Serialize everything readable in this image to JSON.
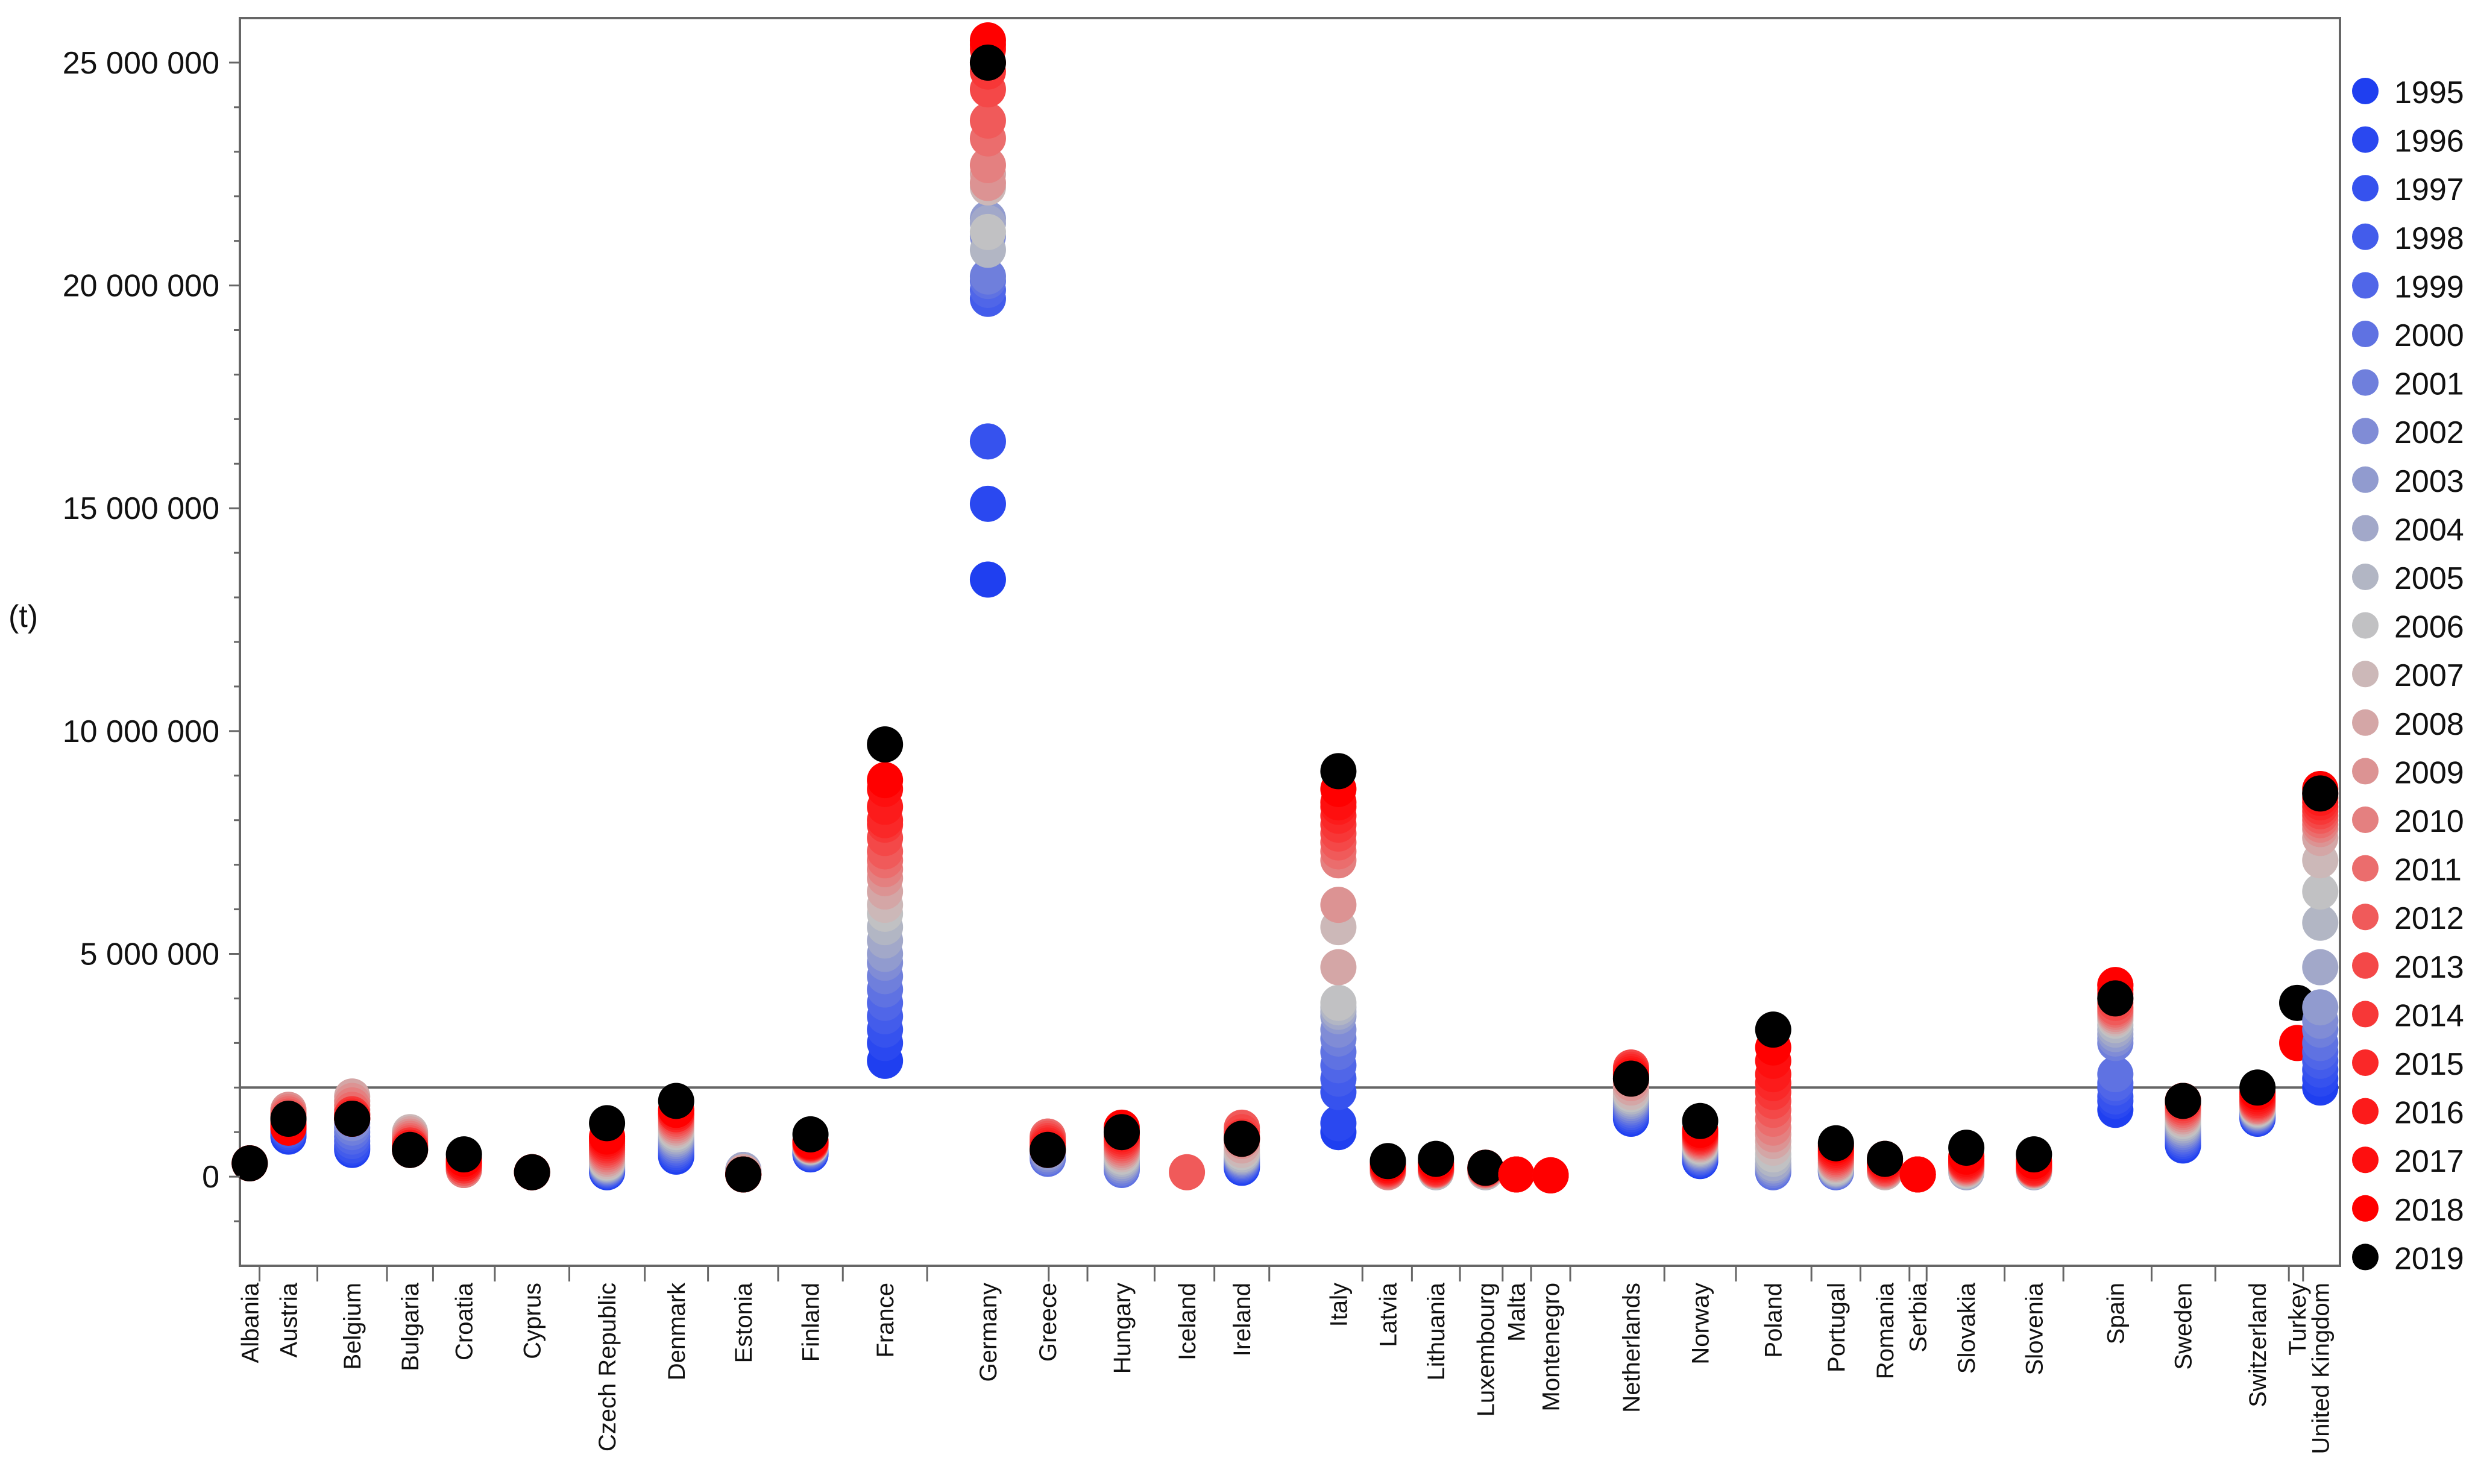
{
  "chart_data": {
    "type": "scatter",
    "title": "",
    "xlabel": "",
    "ylabel": "(t)",
    "ylim": [
      -2000000,
      26000000
    ],
    "yticks": [
      0,
      5000000,
      10000000,
      15000000,
      20000000,
      25000000
    ],
    "ytick_labels": [
      "0",
      "5 000 000",
      "10 000 000",
      "15 000 000",
      "20 000 000",
      "25 000 000"
    ],
    "reference_line": 2000000,
    "legend_position": "right",
    "legend": [
      {
        "year": "1995",
        "color": "#1f3ff0"
      },
      {
        "year": "1996",
        "color": "#2a48f0"
      },
      {
        "year": "1997",
        "color": "#3652ee"
      },
      {
        "year": "1998",
        "color": "#435ceb"
      },
      {
        "year": "1999",
        "color": "#5066e8"
      },
      {
        "year": "2000",
        "color": "#5f72e2"
      },
      {
        "year": "2001",
        "color": "#6f7fdc"
      },
      {
        "year": "2002",
        "color": "#808cd6"
      },
      {
        "year": "2003",
        "color": "#919bcf"
      },
      {
        "year": "2004",
        "color": "#a2a8c9"
      },
      {
        "year": "2005",
        "color": "#b2b6c4"
      },
      {
        "year": "2006",
        "color": "#c1c1c3"
      },
      {
        "year": "2007",
        "color": "#ccb8b8"
      },
      {
        "year": "2008",
        "color": "#d4a6a6"
      },
      {
        "year": "2009",
        "color": "#dc9393"
      },
      {
        "year": "2010",
        "color": "#e48080"
      },
      {
        "year": "2011",
        "color": "#eb6d6d"
      },
      {
        "year": "2012",
        "color": "#f05a5a"
      },
      {
        "year": "2013",
        "color": "#f44848"
      },
      {
        "year": "2014",
        "color": "#f73737"
      },
      {
        "year": "2015",
        "color": "#fa2828"
      },
      {
        "year": "2016",
        "color": "#fc1b1b"
      },
      {
        "year": "2017",
        "color": "#fe0f0f"
      },
      {
        "year": "2018",
        "color": "#ff0000"
      },
      {
        "year": "2019",
        "color": "#000000"
      }
    ],
    "categories": [
      "Albania",
      "Austria",
      "Belgium",
      "Bulgaria",
      "Croatia",
      "Cyprus",
      "Czech Republic",
      "Denmark",
      "Estonia",
      "Finland",
      "France",
      "Germany",
      "Greece",
      "Hungary",
      "Iceland",
      "Ireland",
      "Italy",
      "Latvia",
      "Lithuania",
      "Luxembourg",
      "Malta",
      "Montenegro",
      "Netherlands",
      "Norway",
      "Poland",
      "Portugal",
      "Romania",
      "Serbia",
      "Slovakia",
      "Slovenia",
      "Spain",
      "Sweden",
      "Switzerland",
      "Turkey",
      "United Kingdom"
    ],
    "series": [
      {
        "name": "Albania",
        "first_year": 2014,
        "values": [
          300000,
          300000,
          300000,
          300000,
          300000,
          300000
        ]
      },
      {
        "name": "Austria",
        "first_year": 1995,
        "values": [
          900000,
          950000,
          1000000,
          1050000,
          1100000,
          1150000,
          1200000,
          1250000,
          1300000,
          1300000,
          1350000,
          1400000,
          1450000,
          1500000,
          1500000,
          1450000,
          1400000,
          1350000,
          1300000,
          1250000,
          1200000,
          1150000,
          1100000,
          1100000,
          1300000
        ]
      },
      {
        "name": "Belgium",
        "first_year": 1995,
        "values": [
          600000,
          650000,
          700000,
          800000,
          900000,
          1000000,
          1100000,
          1200000,
          1300000,
          1400000,
          1500000,
          1600000,
          1700000,
          1800000,
          1700000,
          1600000,
          1500000,
          1400000,
          1400000,
          1400000,
          1350000,
          1300000,
          1300000,
          1300000,
          1300000
        ]
      },
      {
        "name": "Bulgaria",
        "first_year": 2007,
        "values": [
          1000000,
          950000,
          900000,
          850000,
          800000,
          750000,
          700000,
          700000,
          650000,
          650000,
          600000,
          600000,
          600000
        ]
      },
      {
        "name": "Croatia",
        "first_year": 2009,
        "values": [
          150000,
          150000,
          200000,
          200000,
          250000,
          250000,
          300000,
          300000,
          350000,
          400000,
          500000
        ]
      },
      {
        "name": "Cyprus",
        "first_year": 2014,
        "values": [
          100000,
          100000,
          100000,
          100000,
          100000,
          100000
        ]
      },
      {
        "name": "Czech Republic",
        "first_year": 1995,
        "values": [
          100000,
          120000,
          140000,
          160000,
          180000,
          200000,
          220000,
          240000,
          260000,
          280000,
          300000,
          320000,
          350000,
          400000,
          450000,
          500000,
          550000,
          600000,
          650000,
          700000,
          750000,
          800000,
          850000,
          900000,
          1200000
        ]
      },
      {
        "name": "Denmark",
        "first_year": 1995,
        "values": [
          450000,
          500000,
          550000,
          600000,
          650000,
          700000,
          750000,
          800000,
          850000,
          900000,
          950000,
          1000000,
          1050000,
          1100000,
          1150000,
          1200000,
          1250000,
          1300000,
          1350000,
          1400000,
          1400000,
          1450000,
          1500000,
          1500000,
          1700000
        ]
      },
      {
        "name": "Estonia",
        "first_year": 2002,
        "values": [
          150000,
          150000,
          150000,
          100000,
          100000,
          100000,
          100000,
          50000,
          50000,
          50000,
          50000,
          50000,
          50000,
          50000,
          50000,
          50000,
          50000,
          50000
        ]
      },
      {
        "name": "Finland",
        "first_year": 1995,
        "values": [
          500000,
          520000,
          540000,
          560000,
          580000,
          600000,
          620000,
          640000,
          650000,
          660000,
          670000,
          680000,
          690000,
          700000,
          700000,
          710000,
          720000,
          730000,
          740000,
          750000,
          760000,
          770000,
          780000,
          800000,
          950000
        ]
      },
      {
        "name": "France",
        "first_year": 1995,
        "values": [
          2600000,
          3000000,
          3300000,
          3600000,
          3900000,
          4200000,
          4500000,
          4800000,
          5000000,
          5300000,
          5600000,
          5900000,
          6100000,
          6400000,
          6700000,
          6900000,
          7100000,
          7300000,
          7600000,
          7900000,
          8000000,
          8300000,
          8700000,
          8900000,
          9700000
        ]
      },
      {
        "name": "Germany",
        "first_year": 1995,
        "values": [
          13400000,
          15100000,
          16500000,
          19700000,
          19900000,
          20100000,
          20200000,
          21100000,
          21500000,
          21400000,
          20800000,
          21200000,
          22200000,
          22500000,
          22300000,
          22700000,
          23300000,
          23700000,
          24400000,
          24800000,
          25000000,
          25300000,
          25400000,
          25500000,
          25000000
        ]
      },
      {
        "name": "Greece",
        "first_year": 2000,
        "values": [
          400000,
          450000,
          500000,
          550000,
          600000,
          650000,
          700000,
          750000,
          800000,
          850000,
          900000,
          900000,
          850000,
          800000,
          750000,
          700000,
          650000,
          600000,
          600000,
          600000
        ]
      },
      {
        "name": "Hungary",
        "first_year": 2000,
        "values": [
          150000,
          200000,
          250000,
          300000,
          350000,
          400000,
          450000,
          500000,
          550000,
          600000,
          650000,
          700000,
          750000,
          800000,
          850000,
          900000,
          950000,
          1000000,
          1100000,
          1000000
        ]
      },
      {
        "name": "Iceland",
        "first_year": 2012,
        "values": [
          100000
        ]
      },
      {
        "name": "Ireland",
        "first_year": 1995,
        "values": [
          200000,
          230000,
          260000,
          290000,
          320000,
          350000,
          380000,
          410000,
          440000,
          470000,
          500000,
          550000,
          600000,
          700000,
          800000,
          900000,
          1000000,
          1100000,
          1000000,
          900000,
          850000,
          850000,
          850000,
          850000,
          850000
        ]
      },
      {
        "name": "Italy",
        "first_year": 1995,
        "values": [
          1000000,
          1200000,
          1900000,
          2200000,
          2500000,
          2800000,
          3100000,
          3300000,
          3600000,
          3700000,
          3800000,
          3900000,
          5600000,
          4700000,
          6100000,
          7100000,
          7300000,
          7500000,
          7700000,
          7900000,
          8100000,
          8300000,
          8400000,
          8700000,
          9100000
        ]
      },
      {
        "name": "Latvia",
        "first_year": 2009,
        "values": [
          100000,
          120000,
          140000,
          160000,
          180000,
          200000,
          220000,
          240000,
          260000,
          300000,
          350000
        ]
      },
      {
        "name": "Lithuania",
        "first_year": 2005,
        "values": [
          100000,
          110000,
          120000,
          130000,
          140000,
          150000,
          160000,
          170000,
          180000,
          200000,
          220000,
          250000,
          280000,
          320000,
          400000
        ]
      },
      {
        "name": "Luxembourg",
        "first_year": 2005,
        "values": [
          100000,
          110000,
          120000,
          130000,
          140000,
          150000,
          160000,
          170000,
          180000,
          190000,
          200000,
          200000,
          200000,
          200000,
          200000
        ]
      },
      {
        "name": "Malta",
        "first_year": 2014,
        "values": [
          50000,
          50000,
          50000,
          50000,
          50000
        ]
      },
      {
        "name": "Montenegro",
        "first_year": 2016,
        "values": [
          30000,
          30000,
          30000
        ]
      },
      {
        "name": "Netherlands",
        "first_year": 1995,
        "values": [
          1300000,
          1350000,
          1400000,
          1450000,
          1500000,
          1550000,
          1600000,
          1650000,
          1700000,
          1750000,
          1800000,
          1850000,
          1900000,
          2000000,
          2100000,
          2200000,
          2300000,
          2400000,
          2450000,
          2400000,
          2350000,
          2300000,
          2250000,
          2200000,
          2200000
        ]
      },
      {
        "name": "Norway",
        "first_year": 1995,
        "values": [
          350000,
          380000,
          410000,
          440000,
          470000,
          500000,
          530000,
          560000,
          590000,
          620000,
          650000,
          680000,
          710000,
          740000,
          770000,
          800000,
          830000,
          860000,
          890000,
          920000,
          950000,
          980000,
          1010000,
          1050000,
          1250000
        ]
      },
      {
        "name": "Poland",
        "first_year": 2000,
        "values": [
          100000,
          150000,
          200000,
          250000,
          300000,
          400000,
          500000,
          650000,
          800000,
          950000,
          1100000,
          1300000,
          1500000,
          1700000,
          1900000,
          2100000,
          2300000,
          2600000,
          2900000,
          3300000
        ]
      },
      {
        "name": "Portugal",
        "first_year": 2000,
        "values": [
          100000,
          120000,
          140000,
          160000,
          180000,
          200000,
          230000,
          260000,
          290000,
          320000,
          360000,
          400000,
          440000,
          480000,
          520000,
          560000,
          600000,
          650000,
          700000,
          750000
        ]
      },
      {
        "name": "Romania",
        "first_year": 2007,
        "values": [
          100000,
          120000,
          140000,
          160000,
          180000,
          200000,
          230000,
          260000,
          290000,
          320000,
          350000,
          400000,
          400000
        ]
      },
      {
        "name": "Serbia",
        "first_year": 2013,
        "values": [
          50000,
          50000,
          50000,
          50000,
          50000,
          50000
        ]
      },
      {
        "name": "Slovakia",
        "first_year": 2004,
        "values": [
          100000,
          120000,
          140000,
          160000,
          180000,
          200000,
          220000,
          240000,
          260000,
          280000,
          300000,
          330000,
          360000,
          400000,
          450000,
          650000
        ]
      },
      {
        "name": "Slovenia",
        "first_year": 2004,
        "values": [
          100000,
          110000,
          120000,
          130000,
          140000,
          150000,
          160000,
          170000,
          180000,
          190000,
          200000,
          220000,
          250000,
          300000,
          350000,
          500000
        ]
      },
      {
        "name": "Spain",
        "first_year": 1995,
        "values": [
          1500000,
          1700000,
          1800000,
          2000000,
          2100000,
          2300000,
          3000000,
          3100000,
          3200000,
          3300000,
          3400000,
          3500000,
          3550000,
          3600000,
          3650000,
          3700000,
          3750000,
          3800000,
          3900000,
          4000000,
          4100000,
          4200000,
          4300000,
          4300000,
          4000000
        ]
      },
      {
        "name": "Sweden",
        "first_year": 1995,
        "values": [
          700000,
          750000,
          800000,
          850000,
          900000,
          950000,
          1000000,
          1050000,
          1100000,
          1150000,
          1200000,
          1250000,
          1300000,
          1350000,
          1400000,
          1450000,
          1500000,
          1550000,
          1600000,
          1650000,
          1700000,
          1700000,
          1700000,
          1700000,
          1700000
        ]
      },
      {
        "name": "Switzerland",
        "first_year": 1995,
        "values": [
          1300000,
          1320000,
          1340000,
          1360000,
          1380000,
          1400000,
          1420000,
          1440000,
          1460000,
          1480000,
          1500000,
          1520000,
          1540000,
          1560000,
          1580000,
          1600000,
          1630000,
          1660000,
          1690000,
          1720000,
          1760000,
          1800000,
          1850000,
          1900000,
          2000000
        ]
      },
      {
        "name": "Turkey",
        "first_year": 2018,
        "values": [
          3000000,
          3900000
        ]
      },
      {
        "name": "United Kingdom",
        "first_year": 1995,
        "values": [
          2000000,
          2200000,
          2400000,
          2600000,
          2800000,
          3000000,
          3300000,
          3500000,
          3800000,
          4700000,
          5700000,
          6400000,
          7100000,
          7600000,
          7800000,
          7900000,
          8000000,
          8100000,
          8200000,
          8300000,
          8400000,
          8500000,
          8600000,
          8700000,
          8600000
        ]
      }
    ]
  }
}
